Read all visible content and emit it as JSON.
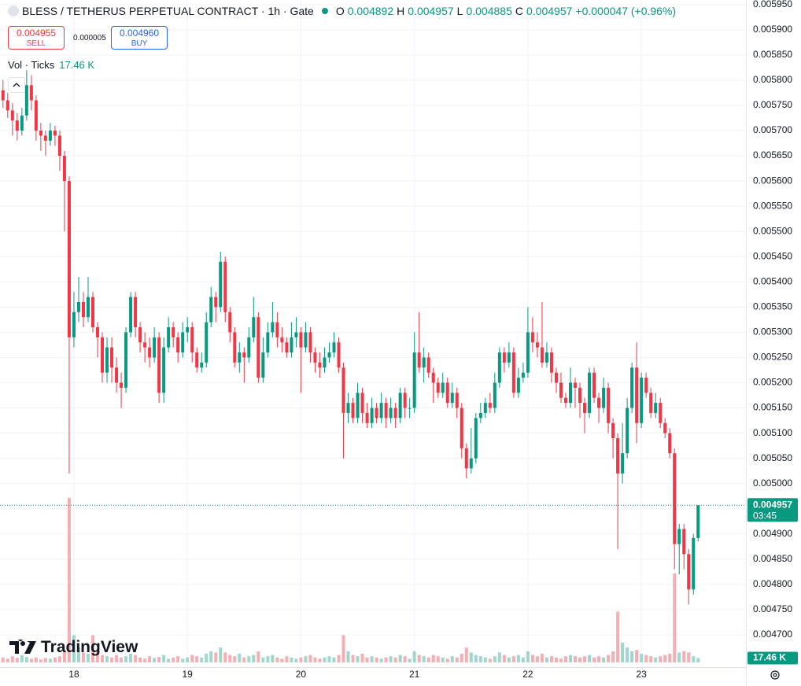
{
  "header": {
    "symbol": "BLESS / TETHERUS PERPETUAL CONTRACT · 1h · Gate",
    "o_label": "O",
    "h_label": "H",
    "l_label": "L",
    "c_label": "C",
    "change": "+0.000047 (+0.96%)",
    "sell_price": "0.004955",
    "sell": "SELL",
    "spread": "0.000005",
    "buy_price": "0.004960",
    "buy": "BUY",
    "volume_title": "Vol · Ticks",
    "countdown": "03:45",
    "branding": "TradingView"
  },
  "chart_data": {
    "type": "candlestick",
    "categories": [
      null,
      null,
      null,
      null,
      null,
      null,
      null,
      null,
      null,
      null,
      null,
      null,
      null,
      null,
      null,
      "18",
      null,
      null,
      null,
      null,
      null,
      null,
      null,
      null,
      null,
      null,
      null,
      null,
      null,
      null,
      null,
      null,
      null,
      null,
      null,
      null,
      null,
      null,
      null,
      "19",
      null,
      null,
      null,
      null,
      null,
      null,
      null,
      null,
      null,
      null,
      null,
      null,
      null,
      null,
      null,
      null,
      null,
      null,
      null,
      null,
      null,
      null,
      null,
      "20",
      null,
      null,
      null,
      null,
      null,
      null,
      null,
      null,
      null,
      null,
      null,
      null,
      null,
      null,
      null,
      null,
      null,
      null,
      null,
      null,
      null,
      null,
      null,
      "21",
      null,
      null,
      null,
      null,
      null,
      null,
      null,
      null,
      null,
      null,
      null,
      null,
      null,
      null,
      null,
      null,
      null,
      null,
      null,
      null,
      null,
      null,
      null,
      "22",
      null,
      null,
      null,
      null,
      null,
      null,
      null,
      null,
      null,
      null,
      null,
      null,
      null,
      null,
      null,
      null,
      null,
      null,
      null,
      null,
      null,
      null,
      null,
      "23",
      null,
      null,
      null,
      null,
      null,
      null,
      null,
      null,
      null,
      null,
      null,
      null
    ],
    "open": [
      0.00578,
      0.00576,
      0.00574,
      0.00572,
      0.0057,
      0.00573,
      0.00579,
      0.00576,
      0.0057,
      0.00569,
      0.00568,
      0.0057,
      0.00569,
      0.00565,
      0.0056,
      0.00529,
      0.00534,
      0.00536,
      0.00533,
      0.00537,
      0.00531,
      0.00529,
      0.00522,
      0.00527,
      0.00523,
      0.0052,
      0.00519,
      0.0053,
      0.00537,
      0.00531,
      0.00528,
      0.00527,
      0.00525,
      0.00529,
      0.00518,
      0.00527,
      0.00531,
      0.00529,
      0.00526,
      0.0053,
      0.00531,
      0.00526,
      0.00523,
      0.00524,
      0.00532,
      0.00537,
      0.00535,
      0.00544,
      0.00534,
      0.0053,
      0.00524,
      0.00526,
      0.00525,
      0.00529,
      0.00533,
      0.00521,
      0.00526,
      0.0053,
      0.00532,
      0.00529,
      0.00528,
      0.00526,
      0.00529,
      0.0053,
      0.00527,
      0.0053,
      0.00526,
      0.00524,
      0.00523,
      0.00525,
      0.00526,
      0.00528,
      0.00523,
      0.00514,
      0.00516,
      0.00513,
      0.00518,
      0.00514,
      0.00512,
      0.00515,
      0.00513,
      0.00516,
      0.00513,
      0.00515,
      0.00513,
      0.00518,
      0.00515,
      0.00515,
      0.00526,
      0.00523,
      0.00525,
      0.00522,
      0.0052,
      0.00518,
      0.0052,
      0.00516,
      0.00518,
      0.00515,
      0.00507,
      0.00503,
      0.00505,
      0.00513,
      0.00514,
      0.00516,
      0.00515,
      0.0052,
      0.00526,
      0.00524,
      0.00526,
      0.00518,
      0.00521,
      0.00522,
      0.0053,
      0.00528,
      0.00527,
      0.00524,
      0.00526,
      0.00522,
      0.0052,
      0.00517,
      0.00516,
      0.0052,
      0.00519,
      0.00516,
      0.00514,
      0.00522,
      0.00517,
      0.00515,
      0.00519,
      0.00512,
      0.00509,
      0.00502,
      0.00506,
      0.00515,
      0.00523,
      0.00512,
      0.00521,
      0.00518,
      0.00514,
      0.00516,
      0.00512,
      0.0051,
      0.00506,
      0.00488,
      0.00491,
      0.00486,
      0.00479,
      0.004892
    ],
    "high": [
      0.0058,
      0.005775,
      0.005755,
      0.005735,
      0.005745,
      0.00582,
      0.00581,
      0.00577,
      0.005715,
      0.0057,
      0.005715,
      0.00571,
      0.0057,
      0.00566,
      0.00561,
      0.00538,
      0.00541,
      0.00538,
      0.00541,
      0.00538,
      0.00532,
      0.0053,
      0.00529,
      0.00529,
      0.00525,
      0.00522,
      0.00531,
      0.00538,
      0.00538,
      0.00532,
      0.0053,
      0.00529,
      0.00531,
      0.0053,
      0.00529,
      0.00533,
      0.00532,
      0.0053,
      0.00532,
      0.00533,
      0.00532,
      0.00527,
      0.00526,
      0.00534,
      0.00539,
      0.00538,
      0.00546,
      0.00545,
      0.00535,
      0.00531,
      0.00528,
      0.00527,
      0.00531,
      0.00537,
      0.00534,
      0.00529,
      0.00532,
      0.00536,
      0.00534,
      0.00531,
      0.00529,
      0.00532,
      0.00533,
      0.00531,
      0.00532,
      0.00531,
      0.00527,
      0.00526,
      0.00527,
      0.00528,
      0.0053,
      0.00529,
      0.00524,
      0.00518,
      0.00517,
      0.0052,
      0.00519,
      0.00516,
      0.00517,
      0.00516,
      0.00518,
      0.00517,
      0.00517,
      0.00516,
      0.00519,
      0.00519,
      0.00517,
      0.0053,
      0.00534,
      0.00527,
      0.00526,
      0.00523,
      0.00521,
      0.00522,
      0.00521,
      0.0052,
      0.00519,
      0.00516,
      0.00508,
      0.00511,
      0.00514,
      0.00516,
      0.00517,
      0.00518,
      0.00522,
      0.00527,
      0.00527,
      0.00528,
      0.00527,
      0.00523,
      0.00524,
      0.00535,
      0.00533,
      0.0053,
      0.00536,
      0.00528,
      0.00527,
      0.00523,
      0.00522,
      0.00518,
      0.00523,
      0.00521,
      0.0052,
      0.00517,
      0.00523,
      0.00523,
      0.00518,
      0.00521,
      0.0052,
      0.00513,
      0.0051,
      0.00512,
      0.00517,
      0.00524,
      0.00528,
      0.00522,
      0.00522,
      0.00519,
      0.00518,
      0.00517,
      0.00513,
      0.00511,
      0.00507,
      0.00492,
      0.00492,
      0.00487,
      0.0049,
      0.004957
    ],
    "low": [
      0.005745,
      0.005725,
      0.00569,
      0.00568,
      0.00569,
      0.00572,
      0.00574,
      0.00568,
      0.00566,
      0.00565,
      0.00567,
      0.00567,
      0.00562,
      0.0055,
      0.00502,
      0.00527,
      0.00532,
      0.00531,
      0.00532,
      0.0053,
      0.00525,
      0.0052,
      0.0052,
      0.0052,
      0.00518,
      0.00515,
      0.00518,
      0.00529,
      0.00529,
      0.00526,
      0.00524,
      0.00523,
      0.00524,
      0.00516,
      0.00516,
      0.00526,
      0.00527,
      0.00524,
      0.00525,
      0.00528,
      0.00524,
      0.00522,
      0.00522,
      0.00523,
      0.00531,
      0.00532,
      0.00534,
      0.00532,
      0.00528,
      0.00523,
      0.00522,
      0.0052,
      0.00524,
      0.00528,
      0.0052,
      0.0052,
      0.00525,
      0.00529,
      0.00527,
      0.00526,
      0.00525,
      0.00525,
      0.00527,
      0.00518,
      0.00526,
      0.00524,
      0.00522,
      0.00521,
      0.00522,
      0.00524,
      0.00525,
      0.00522,
      0.00505,
      0.00512,
      0.00512,
      0.00512,
      0.00512,
      0.00511,
      0.00511,
      0.00512,
      0.00512,
      0.00511,
      0.00512,
      0.00511,
      0.00512,
      0.00513,
      0.00513,
      0.00514,
      0.00522,
      0.0052,
      0.00521,
      0.00516,
      0.00517,
      0.00517,
      0.00515,
      0.00515,
      0.00513,
      0.00505,
      0.00501,
      0.00502,
      0.00504,
      0.00512,
      0.00513,
      0.00514,
      0.00514,
      0.00519,
      0.00522,
      0.00523,
      0.00517,
      0.00517,
      0.0052,
      0.00521,
      0.00526,
      0.00525,
      0.00523,
      0.00523,
      0.0052,
      0.00518,
      0.00516,
      0.00515,
      0.00515,
      0.00515,
      0.00513,
      0.0051,
      0.00513,
      0.00516,
      0.00512,
      0.00514,
      0.0051,
      0.00505,
      0.00487,
      0.005,
      0.00505,
      0.00514,
      0.00508,
      0.00511,
      0.00517,
      0.00513,
      0.00513,
      0.00511,
      0.00509,
      0.00505,
      0.00483,
      0.00482,
      0.00483,
      0.00476,
      0.00478,
      0.004885
    ],
    "close": [
      0.00576,
      0.00574,
      0.00572,
      0.0057,
      0.00573,
      0.00579,
      0.00576,
      0.0057,
      0.00569,
      0.00568,
      0.0057,
      0.00569,
      0.00565,
      0.0056,
      0.00529,
      0.00534,
      0.00536,
      0.00533,
      0.00537,
      0.00531,
      0.00529,
      0.00522,
      0.00527,
      0.00523,
      0.0052,
      0.00519,
      0.0053,
      0.00537,
      0.00531,
      0.00528,
      0.00527,
      0.00525,
      0.00529,
      0.00518,
      0.00527,
      0.00531,
      0.00529,
      0.00526,
      0.0053,
      0.00531,
      0.00526,
      0.00523,
      0.00524,
      0.00532,
      0.00537,
      0.00535,
      0.00544,
      0.00534,
      0.0053,
      0.00524,
      0.00526,
      0.00525,
      0.00529,
      0.00533,
      0.00521,
      0.00526,
      0.0053,
      0.00532,
      0.00529,
      0.00528,
      0.00526,
      0.00529,
      0.0053,
      0.00527,
      0.0053,
      0.00526,
      0.00524,
      0.00523,
      0.00525,
      0.00526,
      0.00528,
      0.00523,
      0.00514,
      0.00516,
      0.00513,
      0.00518,
      0.00514,
      0.00512,
      0.00515,
      0.00513,
      0.00516,
      0.00513,
      0.00515,
      0.00513,
      0.00518,
      0.00515,
      0.00515,
      0.00526,
      0.00523,
      0.00525,
      0.00522,
      0.0052,
      0.00518,
      0.0052,
      0.00516,
      0.00518,
      0.00515,
      0.00507,
      0.00503,
      0.00505,
      0.00513,
      0.00514,
      0.00516,
      0.00515,
      0.0052,
      0.00526,
      0.00524,
      0.00526,
      0.00518,
      0.00521,
      0.00522,
      0.0053,
      0.00528,
      0.00527,
      0.00524,
      0.00526,
      0.00522,
      0.0052,
      0.00517,
      0.00516,
      0.0052,
      0.00519,
      0.00516,
      0.00514,
      0.00522,
      0.00517,
      0.00515,
      0.00519,
      0.00512,
      0.00509,
      0.00502,
      0.00506,
      0.00515,
      0.00523,
      0.00512,
      0.00521,
      0.00518,
      0.00514,
      0.00516,
      0.00512,
      0.0051,
      0.00506,
      0.00488,
      0.00491,
      0.00486,
      0.00479,
      0.004892,
      0.004957
    ],
    "volume": [
      20,
      15,
      25,
      18,
      30,
      22,
      15,
      20,
      12,
      18,
      15,
      20,
      25,
      45,
      665,
      110,
      60,
      40,
      35,
      110,
      50,
      30,
      25,
      20,
      30,
      20,
      25,
      35,
      30,
      20,
      15,
      25,
      18,
      22,
      30,
      15,
      20,
      25,
      15,
      20,
      30,
      25,
      20,
      35,
      45,
      40,
      60,
      40,
      30,
      25,
      35,
      20,
      25,
      30,
      45,
      20,
      25,
      30,
      20,
      15,
      25,
      20,
      15,
      20,
      25,
      30,
      20,
      15,
      20,
      25,
      20,
      30,
      110,
      45,
      30,
      25,
      35,
      20,
      25,
      20,
      15,
      20,
      25,
      20,
      30,
      25,
      15,
      45,
      30,
      25,
      20,
      30,
      25,
      20,
      15,
      25,
      20,
      35,
      60,
      40,
      30,
      25,
      20,
      15,
      25,
      40,
      30,
      20,
      25,
      30,
      20,
      45,
      30,
      25,
      35,
      20,
      25,
      20,
      15,
      25,
      30,
      25,
      20,
      25,
      30,
      20,
      25,
      20,
      30,
      45,
      205,
      80,
      60,
      45,
      50,
      35,
      30,
      25,
      20,
      25,
      30,
      35,
      360,
      40,
      45,
      40,
      25,
      17.46
    ],
    "volume_value_label": "17.46 K",
    "vlim": [
      0,
      700
    ],
    "ylim": [
      0.004636,
      0.005959
    ],
    "yticks": [
      {
        "value": 0.0047,
        "label": "0.004700"
      },
      {
        "value": 0.00475,
        "label": "0.004750"
      },
      {
        "value": 0.0048,
        "label": "0.004800"
      },
      {
        "value": 0.00485,
        "label": "0.004850"
      },
      {
        "value": 0.0049,
        "label": "0.004900"
      },
      {
        "value": 0.00495,
        "label": "0.004950"
      },
      {
        "value": 0.005,
        "label": "0.005000"
      },
      {
        "value": 0.00505,
        "label": "0.005050"
      },
      {
        "value": 0.0051,
        "label": "0.005100"
      },
      {
        "value": 0.00515,
        "label": "0.005150"
      },
      {
        "value": 0.0052,
        "label": "0.005200"
      },
      {
        "value": 0.00525,
        "label": "0.005250"
      },
      {
        "value": 0.0053,
        "label": "0.005300"
      },
      {
        "value": 0.00535,
        "label": "0.005350"
      },
      {
        "value": 0.0054,
        "label": "0.005400"
      },
      {
        "value": 0.00545,
        "label": "0.005450"
      },
      {
        "value": 0.0055,
        "label": "0.005500"
      },
      {
        "value": 0.00555,
        "label": "0.005550"
      },
      {
        "value": 0.0056,
        "label": "0.005600"
      },
      {
        "value": 0.00565,
        "label": "0.005650"
      },
      {
        "value": 0.0057,
        "label": "0.005700"
      },
      {
        "value": 0.00575,
        "label": "0.005750"
      },
      {
        "value": 0.0058,
        "label": "0.005800"
      },
      {
        "value": 0.00585,
        "label": "0.005850"
      },
      {
        "value": 0.0059,
        "label": "0.005900"
      },
      {
        "value": 0.00595,
        "label": "0.005950"
      }
    ],
    "grid": true,
    "up_color": "#089981",
    "down_color": "#f23645",
    "volume_up_color": "#9fd6cd",
    "volume_down_color": "#f7aeb2"
  }
}
